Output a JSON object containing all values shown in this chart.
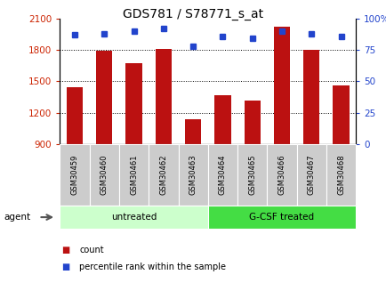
{
  "title": "GDS781 / S78771_s_at",
  "samples": [
    "GSM30459",
    "GSM30460",
    "GSM30461",
    "GSM30462",
    "GSM30463",
    "GSM30464",
    "GSM30465",
    "GSM30466",
    "GSM30467",
    "GSM30468"
  ],
  "counts": [
    1440,
    1790,
    1670,
    1810,
    1140,
    1370,
    1320,
    2020,
    1800,
    1460
  ],
  "percentiles": [
    87,
    88,
    90,
    92,
    78,
    86,
    84,
    90,
    88,
    86
  ],
  "ylim_left": [
    900,
    2100
  ],
  "ylim_right": [
    0,
    100
  ],
  "yticks_left": [
    900,
    1200,
    1500,
    1800,
    2100
  ],
  "yticks_right": [
    0,
    25,
    50,
    75,
    100
  ],
  "bar_color": "#bb1111",
  "dot_color": "#2244cc",
  "bar_width": 0.55,
  "groups": [
    {
      "label": "untreated",
      "start": 0,
      "end": 5,
      "color": "#ccffcc"
    },
    {
      "label": "G-CSF treated",
      "start": 5,
      "end": 10,
      "color": "#44dd44"
    }
  ],
  "agent_label": "agent",
  "legend_count_label": "count",
  "legend_pct_label": "percentile rank within the sample",
  "grid_dotted_color": "#000000",
  "tick_label_bg": "#cccccc"
}
